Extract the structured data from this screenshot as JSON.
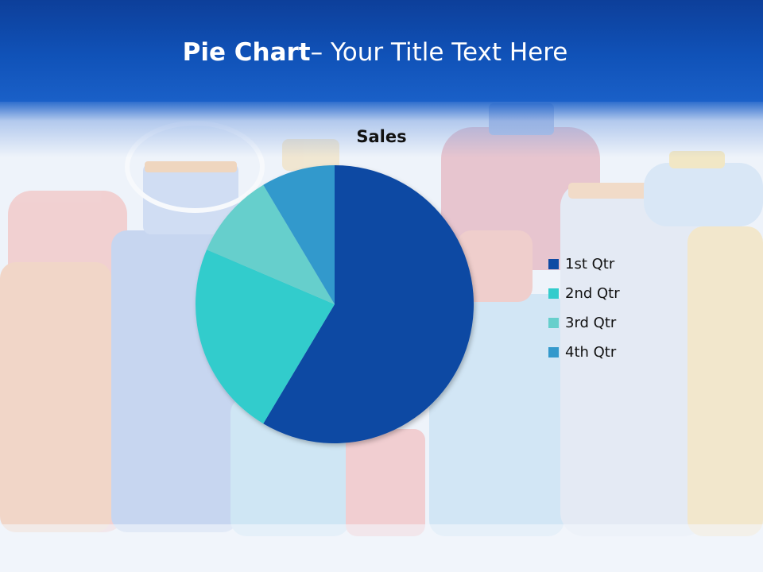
{
  "slide": {
    "title_bold": "Pie Chart",
    "title_rest": "– Your Title Text Here"
  },
  "colors": {
    "header": "#1052b8",
    "q1": "#0f4aa3",
    "q2": "#33cccc",
    "q3": "#66cfcc",
    "q4": "#3399cc"
  },
  "chart_data": {
    "type": "pie",
    "title": "Sales",
    "categories": [
      "1st Qtr",
      "2nd Qtr",
      "3rd Qtr",
      "4th Qtr"
    ],
    "values": [
      8.2,
      3.2,
      1.4,
      1.2
    ],
    "colors": [
      "#0f4aa3",
      "#33cccc",
      "#66cfcc",
      "#3399cc"
    ],
    "legend_position": "right"
  }
}
